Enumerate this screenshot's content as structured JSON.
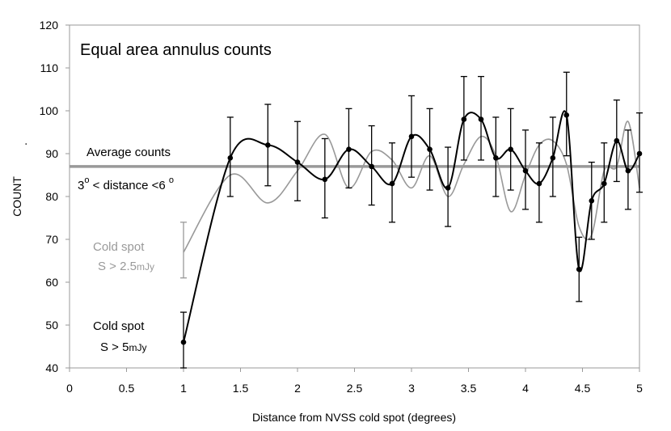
{
  "chart_data": {
    "type": "line",
    "title": "Equal area annulus counts",
    "xlabel": "Distance from NVSS cold spot (degrees)",
    "ylabel": "COUNT",
    "ylabel_suffix": ".",
    "xlim": [
      0,
      5
    ],
    "ylim": [
      40,
      120
    ],
    "x_ticks": [
      0,
      0.5,
      1,
      1.5,
      2,
      2.5,
      3,
      3.5,
      4,
      4.5,
      5
    ],
    "x_tick_labels": [
      "0",
      "0.5",
      "1",
      "1.5",
      "2",
      "2.5",
      "3",
      "3.5",
      "4",
      "4.5",
      "5"
    ],
    "y_ticks": [
      40,
      50,
      60,
      70,
      80,
      90,
      100,
      110,
      120
    ],
    "y_tick_labels": [
      "40",
      "50",
      "60",
      "70",
      "80",
      "90",
      "100",
      "110",
      "120"
    ],
    "average": {
      "value": 87,
      "label": "Average counts",
      "range_label_a": "3",
      "range_label_b": "o",
      "range_label_c": " < distance <6 ",
      "range_label_d": "o",
      "color": "#999999"
    },
    "series": [
      {
        "name": "Cold spot S > 5mJy",
        "label_line1": "Cold spot",
        "label_line2_main": "S > 5",
        "label_line2_unit": "mJy",
        "color": "#000000",
        "x": [
          1.0,
          1.41,
          1.74,
          2.0,
          2.24,
          2.45,
          2.65,
          2.83,
          3.0,
          3.16,
          3.32,
          3.46,
          3.61,
          3.74,
          3.87,
          4.0,
          4.12,
          4.24,
          4.36,
          4.47,
          4.58,
          4.69,
          4.8,
          4.9,
          5.0
        ],
        "values": [
          46,
          89,
          92,
          88,
          84,
          91,
          87,
          83,
          94,
          91,
          82,
          98,
          98,
          89,
          91,
          86,
          83,
          89,
          99,
          63,
          79,
          83,
          93,
          86,
          90
        ],
        "err_low": [
          40,
          80,
          82.5,
          79,
          75,
          82,
          78,
          74,
          84.5,
          81.5,
          73,
          88.5,
          88.5,
          80,
          81.5,
          77,
          74,
          80,
          89.5,
          55.5,
          70,
          74,
          83.5,
          77,
          81
        ],
        "err_high": [
          53,
          98.5,
          101.5,
          97.5,
          93.5,
          100.5,
          96.5,
          92.5,
          103.5,
          100.5,
          91.5,
          108,
          108,
          98.5,
          100.5,
          95.5,
          92.5,
          98.5,
          109,
          70.5,
          88,
          92.5,
          102.5,
          95.5,
          99.5
        ]
      },
      {
        "name": "Cold spot S > 2.5mJy",
        "label_line1": "Cold spot",
        "label_line2_main": "S > 2.5",
        "label_line2_unit": "mJy",
        "color": "#999999",
        "x": [
          1.0,
          1.41,
          1.74,
          2.0,
          2.24,
          2.45,
          2.65,
          2.83,
          3.0,
          3.16,
          3.32,
          3.46,
          3.61,
          3.74,
          3.87,
          4.0,
          4.12,
          4.24,
          4.36,
          4.47,
          4.58,
          4.69,
          4.8,
          4.9,
          5.0
        ],
        "values": [
          67,
          85,
          78.5,
          86,
          94.5,
          82,
          90.5,
          88.5,
          82,
          89.5,
          80,
          87.5,
          94,
          89.5,
          76.5,
          85,
          92,
          93,
          87.5,
          73,
          71,
          86,
          87,
          97.5,
          82
        ],
        "err_low": [
          61,
          null,
          null,
          null,
          null,
          null,
          null,
          null,
          null,
          null,
          null,
          null,
          null,
          null,
          null,
          null,
          null,
          null,
          null,
          null,
          null,
          null,
          null,
          null,
          null
        ],
        "err_high": [
          74,
          null,
          null,
          null,
          null,
          null,
          null,
          null,
          null,
          null,
          null,
          null,
          null,
          null,
          null,
          null,
          null,
          null,
          null,
          null,
          null,
          null,
          null,
          null,
          null
        ]
      }
    ]
  }
}
